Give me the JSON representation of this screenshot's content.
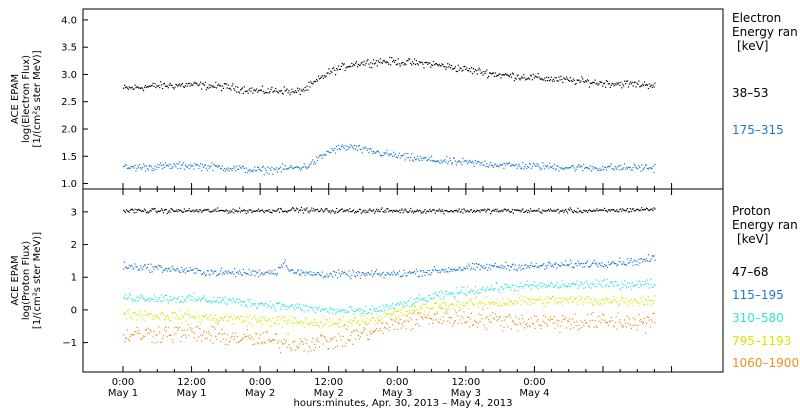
{
  "chart_data": [
    {
      "type": "scatter",
      "panel": "electron",
      "ylabel": [
        "ACE EPAM",
        "log(Electron Flux)",
        "[1/(cm²s ster MeV)]"
      ],
      "ylim": [
        0.9,
        4.2
      ],
      "yticks": [
        "1.0",
        "1.5",
        "2.0",
        "2.5",
        "3.0",
        "3.5",
        "4.0"
      ],
      "ytick_values": [
        1.0,
        1.5,
        2.0,
        2.5,
        3.0,
        3.5,
        4.0
      ],
      "legend": {
        "title": [
          "Electron",
          "Energy ran",
          "[keV]"
        ],
        "placement": "right"
      },
      "series": [
        {
          "name": "38–53",
          "color": "#000000",
          "x": [
            0,
            6,
            12,
            18,
            24,
            28,
            30,
            32,
            34,
            36,
            40,
            45,
            48,
            54,
            60,
            66,
            72,
            78,
            84,
            90,
            93
          ],
          "y": [
            2.75,
            2.8,
            2.82,
            2.78,
            2.7,
            2.72,
            2.68,
            2.75,
            2.9,
            3.05,
            3.2,
            3.25,
            3.24,
            3.2,
            3.1,
            3.0,
            2.95,
            2.9,
            2.85,
            2.83,
            2.82
          ],
          "scatter": 0.06
        },
        {
          "name": "175–315",
          "color": "#1e78d2",
          "x": [
            0,
            6,
            12,
            18,
            24,
            28,
            30,
            32,
            34,
            36,
            38,
            40,
            42,
            46,
            50,
            56,
            62,
            68,
            74,
            80,
            86,
            93
          ],
          "y": [
            1.3,
            1.32,
            1.34,
            1.3,
            1.25,
            1.28,
            1.3,
            1.32,
            1.45,
            1.6,
            1.66,
            1.68,
            1.62,
            1.55,
            1.48,
            1.42,
            1.38,
            1.34,
            1.32,
            1.3,
            1.3,
            1.3
          ],
          "scatter": 0.06
        }
      ]
    },
    {
      "type": "scatter",
      "panel": "proton",
      "ylabel": [
        "ACE EPAM",
        "log(Proton Flux)",
        "[1/(cm²s ster MeV)]"
      ],
      "ylim": [
        -1.9,
        3.7
      ],
      "yticks": [
        "−1",
        "0",
        "1",
        "2",
        "3"
      ],
      "ytick_values": [
        -1,
        0,
        1,
        2,
        3
      ],
      "legend": {
        "title": [
          "Proton",
          "Energy ran",
          "[keV]"
        ],
        "placement": "right"
      },
      "series": [
        {
          "name": "47–68",
          "color": "#000000",
          "x": [
            0,
            12,
            24,
            30,
            36,
            48,
            60,
            72,
            84,
            93
          ],
          "y": [
            3.05,
            3.05,
            3.05,
            3.08,
            3.05,
            3.05,
            3.05,
            3.05,
            3.05,
            3.1
          ],
          "scatter": 0.06
        },
        {
          "name": "115–195",
          "color": "#1e78d2",
          "x": [
            0,
            6,
            12,
            18,
            24,
            27,
            28,
            29,
            30,
            36,
            42,
            48,
            54,
            60,
            66,
            72,
            78,
            84,
            90,
            93
          ],
          "y": [
            1.35,
            1.3,
            1.2,
            1.15,
            1.15,
            1.2,
            1.5,
            1.3,
            1.15,
            1.1,
            1.1,
            1.12,
            1.2,
            1.3,
            1.35,
            1.35,
            1.4,
            1.45,
            1.5,
            1.6
          ],
          "scatter": 0.1
        },
        {
          "name": "310–580",
          "color": "#2ee6d6",
          "x": [
            0,
            6,
            12,
            18,
            24,
            30,
            36,
            42,
            48,
            54,
            60,
            66,
            72,
            78,
            84,
            90,
            93
          ],
          "y": [
            0.4,
            0.38,
            0.35,
            0.3,
            0.2,
            0.1,
            0.0,
            -0.05,
            0.15,
            0.4,
            0.6,
            0.7,
            0.75,
            0.78,
            0.8,
            0.8,
            0.82
          ],
          "scatter": 0.12
        },
        {
          "name": "795–1193",
          "color": "#d8e600",
          "x": [
            0,
            6,
            12,
            18,
            24,
            30,
            36,
            42,
            48,
            54,
            60,
            66,
            72,
            78,
            84,
            90,
            93
          ],
          "y": [
            -0.1,
            -0.15,
            -0.2,
            -0.25,
            -0.3,
            -0.35,
            -0.4,
            -0.3,
            -0.1,
            0.1,
            0.2,
            0.25,
            0.3,
            0.3,
            0.3,
            0.3,
            0.3
          ],
          "scatter": 0.15
        },
        {
          "name": "1060–1900",
          "color": "#e8901c",
          "x": [
            0,
            6,
            12,
            18,
            24,
            30,
            36,
            42,
            48,
            54,
            60,
            66,
            72,
            78,
            84,
            90,
            93
          ],
          "y": [
            -0.75,
            -0.7,
            -0.7,
            -0.8,
            -0.9,
            -1.0,
            -0.95,
            -0.7,
            -0.4,
            -0.2,
            -0.25,
            -0.3,
            -0.35,
            -0.35,
            -0.35,
            -0.35,
            -0.35
          ],
          "scatter": 0.25
        }
      ]
    }
  ],
  "x_axis": {
    "range_hours": [
      -7,
      105
    ],
    "xlabel": "hours:minutes, Apr. 30, 2013 – May  4, 2013",
    "ticks": [
      {
        "hour": 0,
        "time": "0:00",
        "date": "May 1"
      },
      {
        "hour": 12,
        "time": "12:00",
        "date": "May 1"
      },
      {
        "hour": 24,
        "time": "0:00",
        "date": "May 2"
      },
      {
        "hour": 36,
        "time": "12:00",
        "date": "May 2"
      },
      {
        "hour": 48,
        "time": "0:00",
        "date": "May 3"
      },
      {
        "hour": 60,
        "time": "12:00",
        "date": "May 3"
      },
      {
        "hour": 72,
        "time": "0:00",
        "date": "May 4"
      }
    ]
  }
}
